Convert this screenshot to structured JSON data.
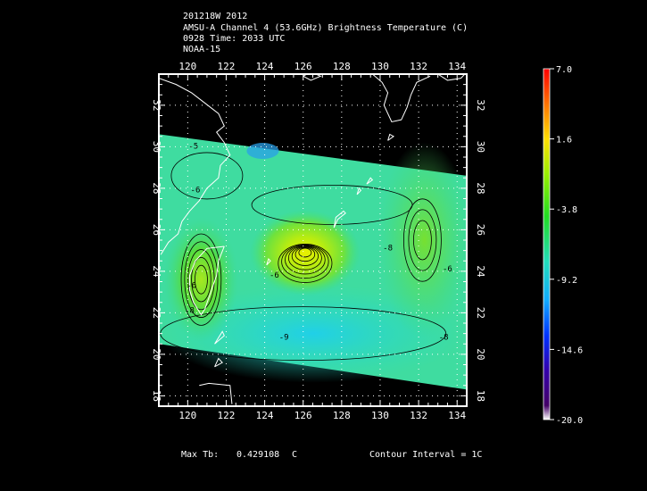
{
  "header": {
    "line1": "201218W 2012",
    "line2": "AMSU-A Channel 4 (53.6GHz) Brightness Temperature (C)",
    "line3": "0928 Time: 2033 UTC",
    "line4": "NOAA-15"
  },
  "map": {
    "lon_range": [
      118.5,
      134.5
    ],
    "lat_range": [
      17.5,
      33.5
    ],
    "lon_ticks": [
      "120",
      "122",
      "124",
      "126",
      "128",
      "130",
      "132",
      "134"
    ],
    "lat_ticks": [
      "18",
      "20",
      "22",
      "24",
      "26",
      "28",
      "30",
      "32"
    ],
    "grid": true,
    "swath_bottom_left_lat": 20.5,
    "swath_bottom_right_lat": 18.3,
    "swath_top_left_lat": 30.6,
    "swath_top_right_lat": 28.6,
    "contour_labels": [
      {
        "text": "-5",
        "lon": 120.3,
        "lat": 29.9
      },
      {
        "text": "-6",
        "lon": 120.4,
        "lat": 27.8
      },
      {
        "text": "-6",
        "lon": 120.2,
        "lat": 23.2
      },
      {
        "text": "-8",
        "lon": 120.1,
        "lat": 22.0
      },
      {
        "text": "-6",
        "lon": 124.5,
        "lat": 23.7
      },
      {
        "text": "-8",
        "lon": 130.4,
        "lat": 25.0
      },
      {
        "text": "-9",
        "lon": 125.0,
        "lat": 20.7
      },
      {
        "text": "-8",
        "lon": 133.3,
        "lat": 20.7
      },
      {
        "text": "-6",
        "lon": 133.5,
        "lat": 24.0
      }
    ],
    "colors": {
      "coast": "#ffffff",
      "contour": "#000000",
      "frame": "#ffffff"
    }
  },
  "colorbar": {
    "labels": [
      "7.0",
      "1.6",
      "-3.8",
      "-9.2",
      "-14.6",
      "-20.0"
    ],
    "values": [
      7.0,
      1.6,
      -3.8,
      -9.2,
      -14.6,
      -20.0
    ],
    "colors": [
      "#ff0000",
      "#ffaa00",
      "#ffff00",
      "#44dd22",
      "#22ddcc",
      "#1166ff",
      "#0000cc",
      "#550099",
      "#ffffff"
    ]
  },
  "footer": {
    "max_tb_label": "Max Tb:",
    "max_tb_value": "0.429108",
    "max_tb_unit": "C",
    "contour_interval": "Contour Interval = 1C"
  }
}
